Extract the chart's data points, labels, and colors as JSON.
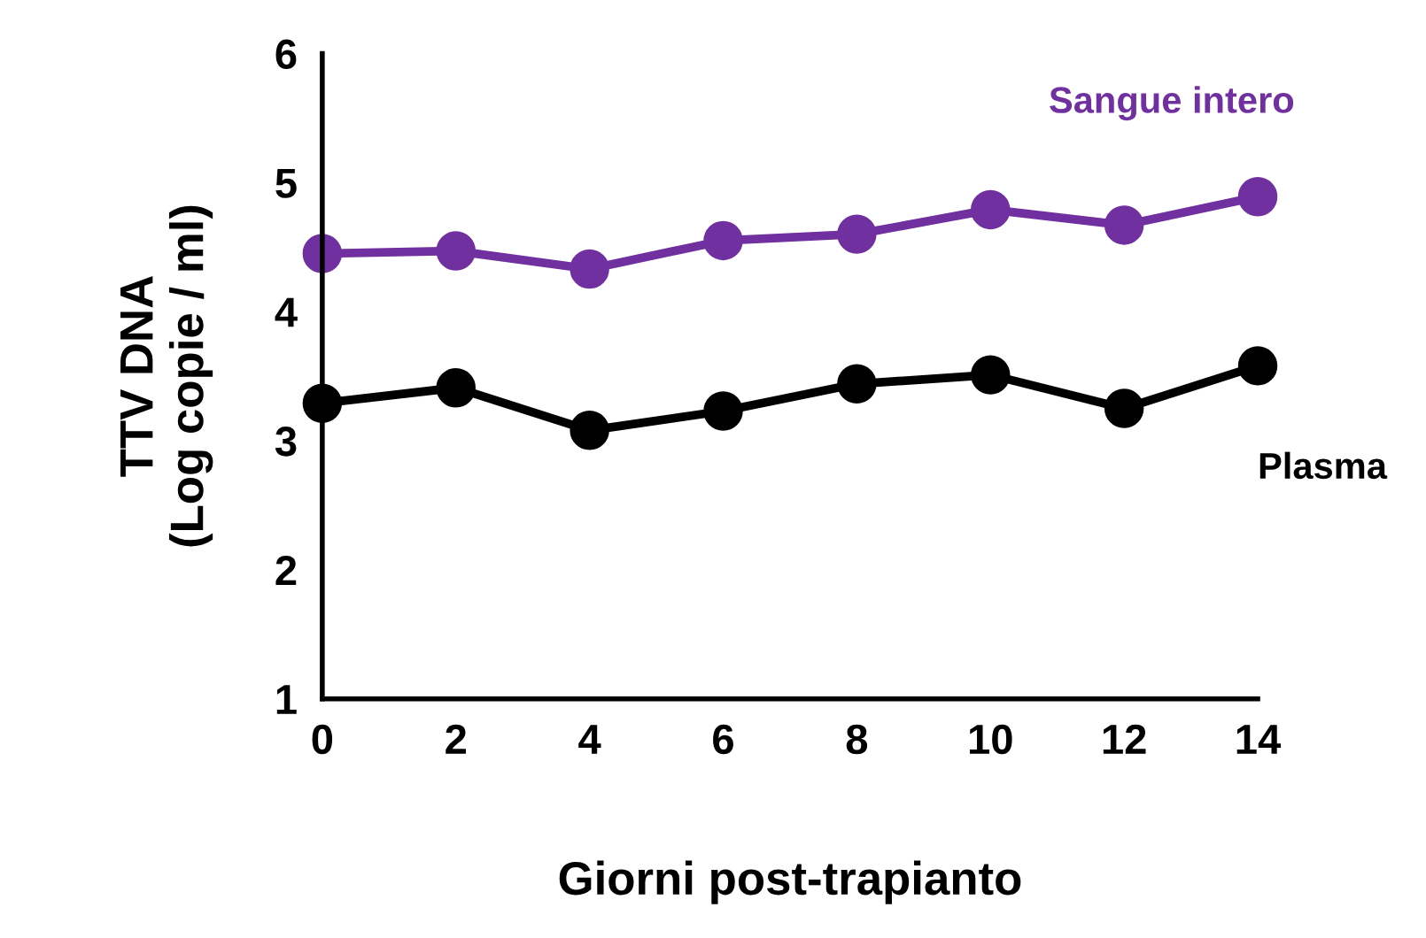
{
  "chart_data": {
    "type": "line",
    "xlabel": "Giorni post-trapianto",
    "ylabel": "TTV DNA\n(Log copie / ml)",
    "x": [
      0,
      2,
      4,
      6,
      8,
      10,
      12,
      14
    ],
    "series": [
      {
        "name": "Sangue intero",
        "color": "#7030a0",
        "values": [
          4.45,
          4.47,
          4.33,
          4.55,
          4.6,
          4.79,
          4.67,
          4.89
        ]
      },
      {
        "name": "Plasma",
        "color": "#000000",
        "values": [
          3.29,
          3.41,
          3.08,
          3.23,
          3.44,
          3.51,
          3.25,
          3.58
        ]
      }
    ],
    "xlim": [
      0,
      14
    ],
    "xticks": [
      0,
      2,
      4,
      6,
      8,
      10,
      12,
      14
    ],
    "ylim": [
      1,
      6
    ],
    "yticks": [
      1,
      2,
      3,
      4,
      5,
      6
    ],
    "grid": false,
    "legend": false,
    "marker": "circle",
    "line_style": "solid"
  }
}
